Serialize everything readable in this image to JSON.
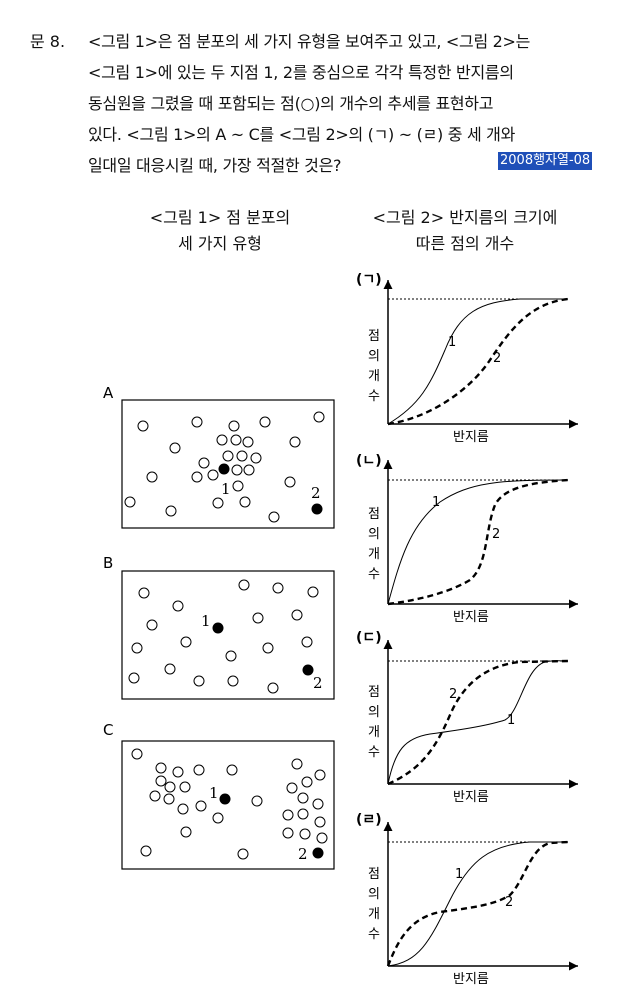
{
  "question": {
    "number": "문  8.",
    "lines": [
      "<그림 1>은 점 분포의 세 가지 유형을 보여주고 있고, <그림 2>는",
      "<그림 1>에 있는 두 지점 1, 2를 중심으로 각각 특정한 반지름의",
      "동심원을 그렸을 때 포함되는 점(○)의 개수의 추세를 표현하고",
      "있다. <그림 1>의 A ~ C를 <그림 2>의 (ㄱ) ~ (ㄹ) 중 세 개와",
      "일대일 대응시킬 때, 가장 적절한 것은?"
    ],
    "source_tag": "2008행자열-08"
  },
  "figure1": {
    "caption_line1": "<그림 1> 점 분포의",
    "caption_line2": "세 가지 유형",
    "panels": [
      {
        "label": "A",
        "point1": "1",
        "point2": "2"
      },
      {
        "label": "B",
        "point1": "1",
        "point2": "2"
      },
      {
        "label": "C",
        "point1": "1",
        "point2": "2"
      }
    ]
  },
  "figure2": {
    "caption_line1": "<그림 2> 반지름의 크기에",
    "caption_line2": "따른 점의 개수",
    "y_axis_chars": [
      "점",
      "의",
      "개",
      "수"
    ],
    "x_axis_label": "반지름",
    "curve1_label": "1",
    "curve2_label": "2",
    "graphs": [
      {
        "label": "(ㄱ)"
      },
      {
        "label": "(ㄴ)"
      },
      {
        "label": "(ㄷ)"
      },
      {
        "label": "(ㄹ)"
      }
    ]
  }
}
